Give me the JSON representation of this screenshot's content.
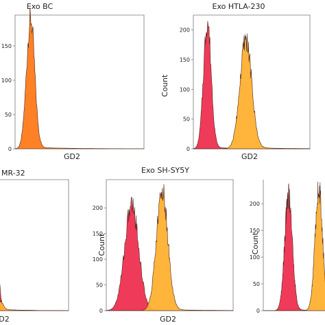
{
  "colors": {
    "control": "#ff7a1a",
    "stained": "#ffb030",
    "isotype": "#ee3050",
    "outline": "#4a2418",
    "frame": "#777777"
  },
  "chart_data": [
    {
      "type": "area",
      "title": "Exo BC",
      "xlabel": "GD2",
      "ylabel": "",
      "yticks": [
        "0",
        "50",
        "100",
        "150"
      ],
      "ylim": [
        0,
        195
      ],
      "xlim": [
        0,
        100
      ],
      "grid": false,
      "series": [
        {
          "color_key": "control",
          "peak_x": 12,
          "peak_y": 188,
          "width": 3.2
        }
      ]
    },
    {
      "type": "area",
      "title": "Exo HTLA-230",
      "xlabel": "GD2",
      "ylabel": "Count",
      "yticks": [
        "0",
        "50",
        "100",
        "150",
        "200"
      ],
      "ylim": [
        0,
        225
      ],
      "xlim": [
        0,
        100
      ],
      "grid": false,
      "series": [
        {
          "color_key": "isotype",
          "peak_x": 12,
          "peak_y": 213,
          "width": 3.3
        },
        {
          "color_key": "stained",
          "peak_x": 45,
          "peak_y": 183,
          "width": 5.0
        }
      ]
    },
    {
      "type": "area",
      "title": "MR-32",
      "xlabel": "D2",
      "ylabel": "",
      "yticks": [],
      "ylim": [
        0,
        225
      ],
      "xlim": [
        0,
        100
      ],
      "grid": false,
      "series": [
        {
          "color_key": "isotype",
          "peak_x": 0,
          "peak_y": 55,
          "width": 2.5
        },
        {
          "color_key": "stained",
          "peak_x": 2,
          "peak_y": 15,
          "width": 4.0
        }
      ]
    },
    {
      "type": "area",
      "title": "Exo SH-SY5Y",
      "xlabel": "GD2",
      "ylabel": "Count",
      "yticks": [
        "0",
        "50",
        "100",
        "150",
        "200"
      ],
      "ylim": [
        0,
        255
      ],
      "xlim": [
        0,
        100
      ],
      "grid": false,
      "series": [
        {
          "color_key": "isotype",
          "peak_x": 20,
          "peak_y": 205,
          "width": 5.5
        },
        {
          "color_key": "stained",
          "peak_x": 44,
          "peak_y": 232,
          "width": 4.5
        }
      ]
    },
    {
      "type": "area",
      "title": "",
      "xlabel": "",
      "ylabel": "Count",
      "yticks": [
        "0",
        "50",
        "100",
        "150",
        "200"
      ],
      "ylim": [
        0,
        245
      ],
      "xlim": [
        0,
        100
      ],
      "grid": false,
      "series": [
        {
          "color_key": "isotype",
          "peak_x": 40,
          "peak_y": 215,
          "width": 6.0
        },
        {
          "color_key": "stained",
          "peak_x": 88,
          "peak_y": 228,
          "width": 6.0
        }
      ]
    }
  ]
}
